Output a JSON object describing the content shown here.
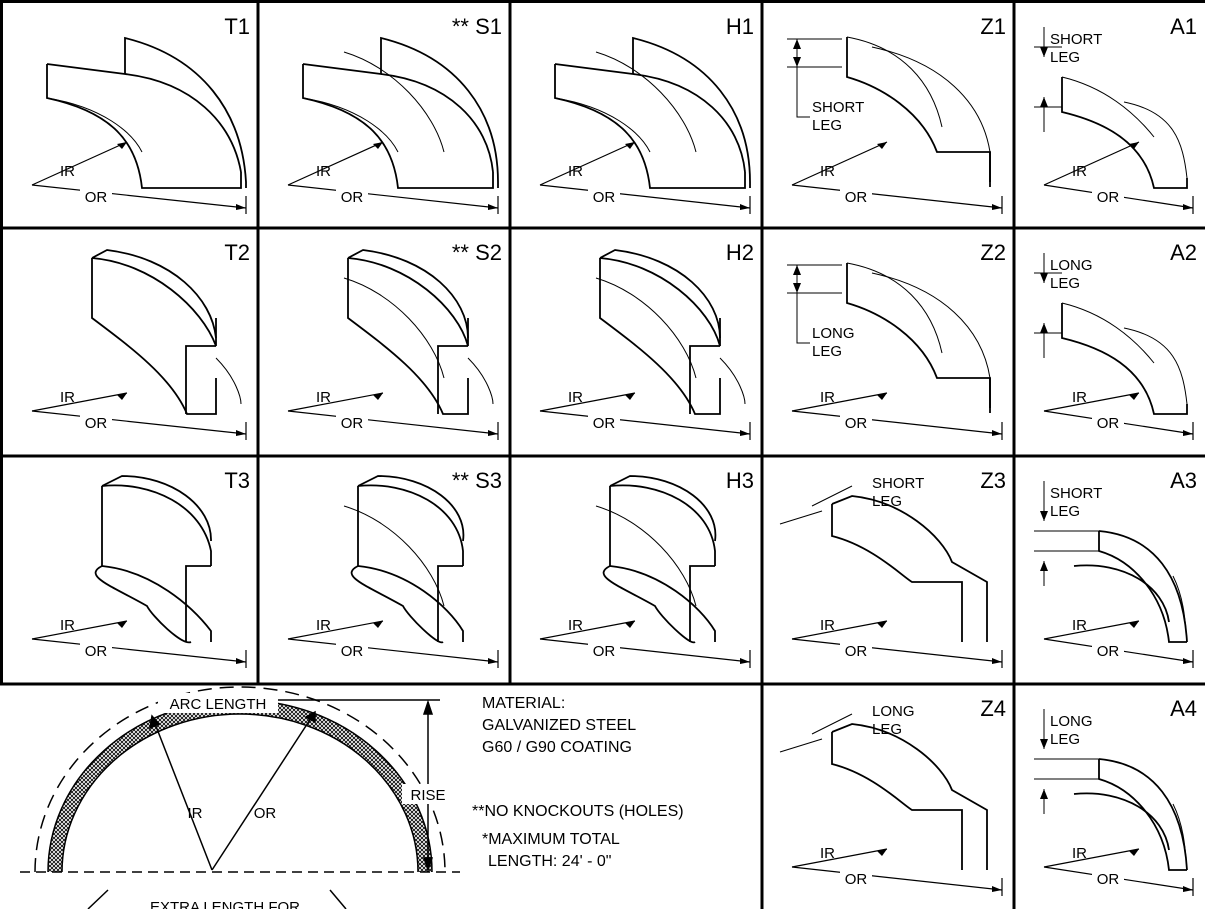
{
  "cells": [
    {
      "code": "T1",
      "ir": "IR",
      "or": "OR"
    },
    {
      "code": "** S1",
      "ir": "IR",
      "or": "OR"
    },
    {
      "code": "H1",
      "ir": "IR",
      "or": "OR"
    },
    {
      "code": "Z1",
      "ir": "IR",
      "or": "OR",
      "leg_top": "SHORT",
      "leg_bottom": "LEG"
    },
    {
      "code": "A1",
      "ir": "IR",
      "or": "OR",
      "leg_top": "SHORT",
      "leg_bottom": "LEG"
    },
    {
      "code": "T2",
      "ir": "IR",
      "or": "OR"
    },
    {
      "code": "** S2",
      "ir": "IR",
      "or": "OR"
    },
    {
      "code": "H2",
      "ir": "IR",
      "or": "OR"
    },
    {
      "code": "Z2",
      "ir": "IR",
      "or": "OR",
      "leg_top": "LONG",
      "leg_bottom": "LEG"
    },
    {
      "code": "A2",
      "ir": "IR",
      "or": "OR",
      "leg_top": "LONG",
      "leg_bottom": "LEG"
    },
    {
      "code": "T3",
      "ir": "IR",
      "or": "OR"
    },
    {
      "code": "** S3",
      "ir": "IR",
      "or": "OR"
    },
    {
      "code": "H3",
      "ir": "IR",
      "or": "OR"
    },
    {
      "code": "Z3",
      "ir": "IR",
      "or": "OR",
      "leg_top": "SHORT",
      "leg_bottom": "LEG"
    },
    {
      "code": "A3",
      "ir": "IR",
      "or": "OR",
      "leg_top": "SHORT",
      "leg_bottom": "LEG"
    },
    {
      "code": "Z4",
      "ir": "IR",
      "or": "OR",
      "leg_top": "LONG",
      "leg_bottom": "LEG"
    },
    {
      "code": "A4",
      "ir": "IR",
      "or": "OR",
      "leg_top": "LONG",
      "leg_bottom": "LEG"
    }
  ],
  "arc": {
    "arc_length": "ARC LENGTH",
    "ir": "IR",
    "or": "OR",
    "rise": "RISE",
    "extra": "EXTRA LENGTH FOR"
  },
  "notes": {
    "material_heading": "MATERIAL:",
    "material_line1": "GALVANIZED STEEL",
    "material_line2": "G60 / G90 COATING",
    "no_knockouts": "**NO KNOCKOUTS (HOLES)",
    "max_total": "*MAXIMUM TOTAL",
    "length": "LENGTH: 24' - 0\""
  }
}
